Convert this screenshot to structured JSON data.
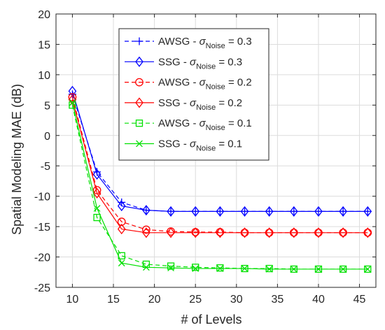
{
  "chart_data": {
    "type": "line",
    "xlabel": "# of Levels",
    "ylabel": "Spatial Modeling MAE (dB)",
    "xlim": [
      8,
      47
    ],
    "ylim": [
      -25,
      20
    ],
    "xticks": [
      10,
      15,
      20,
      25,
      30,
      35,
      40,
      45
    ],
    "yticks": [
      20,
      15,
      10,
      5,
      0,
      -5,
      -10,
      -15,
      -20,
      -25
    ],
    "grid": true,
    "legend_position": "top-right",
    "x": [
      10,
      13,
      16,
      19,
      22,
      25,
      28,
      31,
      34,
      37,
      40,
      43,
      46
    ],
    "series": [
      {
        "name": "AWSG - σNoise = 0.3",
        "label_main": "AWSG - ",
        "label_sigma": "σ",
        "label_sub": "Noise",
        "label_tail": " = 0.3",
        "color": "#0000ff",
        "dash": "dashed",
        "marker": "plus",
        "values": [
          6.8,
          -6.0,
          -11.0,
          -12.3,
          -12.5,
          -12.5,
          -12.5,
          -12.5,
          -12.5,
          -12.5,
          -12.5,
          -12.5,
          -12.5
        ]
      },
      {
        "name": "SSG - σNoise = 0.3",
        "label_main": "SSG - ",
        "label_sigma": "σ",
        "label_sub": "Noise",
        "label_tail": " = 0.3",
        "color": "#0000ff",
        "dash": "solid",
        "marker": "diamond",
        "values": [
          7.3,
          -6.4,
          -11.6,
          -12.3,
          -12.5,
          -12.5,
          -12.5,
          -12.5,
          -12.5,
          -12.5,
          -12.5,
          -12.5,
          -12.5
        ]
      },
      {
        "name": "AWSG - σNoise = 0.2",
        "label_main": "AWSG - ",
        "label_sigma": "σ",
        "label_sub": "Noise",
        "label_tail": " = 0.2",
        "color": "#ff0000",
        "dash": "dashed",
        "marker": "circle",
        "values": [
          6.3,
          -9.0,
          -14.2,
          -15.5,
          -15.8,
          -15.9,
          -15.9,
          -16.0,
          -16.0,
          -16.0,
          -16.0,
          -16.0,
          -16.0
        ]
      },
      {
        "name": "SSG - σNoise = 0.2",
        "label_main": "SSG - ",
        "label_sigma": "σ",
        "label_sub": "Noise",
        "label_tail": " = 0.2",
        "color": "#ff0000",
        "dash": "solid",
        "marker": "diamond",
        "values": [
          5.9,
          -9.5,
          -15.4,
          -16.0,
          -16.0,
          -16.0,
          -16.0,
          -16.0,
          -16.0,
          -16.0,
          -16.0,
          -16.0,
          -16.0
        ]
      },
      {
        "name": "AWSG - σNoise = 0.1",
        "label_main": "AWSG - ",
        "label_sigma": "σ",
        "label_sub": "Noise",
        "label_tail": " = 0.1",
        "color": "#00e000",
        "dash": "dashed",
        "marker": "square",
        "values": [
          5.0,
          -13.5,
          -19.8,
          -21.2,
          -21.5,
          -21.7,
          -21.8,
          -21.9,
          -21.9,
          -22.0,
          -22.0,
          -22.0,
          -22.0
        ]
      },
      {
        "name": "SSG - σNoise = 0.1",
        "label_main": "SSG - ",
        "label_sigma": "σ",
        "label_sub": "Noise",
        "label_tail": " = 0.1",
        "color": "#00e000",
        "dash": "solid",
        "marker": "x",
        "values": [
          5.4,
          -12.0,
          -21.0,
          -21.7,
          -21.8,
          -21.9,
          -21.9,
          -21.9,
          -22.0,
          -22.0,
          -22.0,
          -22.0,
          -22.0
        ]
      }
    ]
  }
}
